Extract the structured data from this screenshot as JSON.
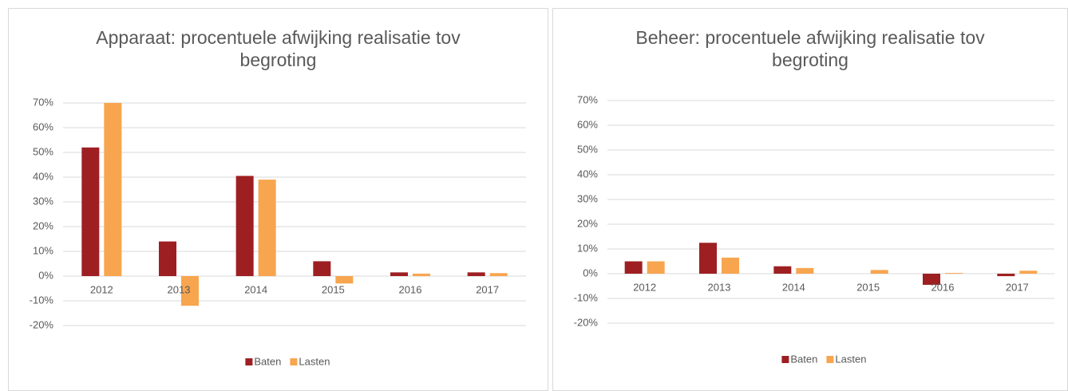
{
  "chart_data": [
    {
      "type": "bar",
      "title": "Apparaat: procentuele afwijking realisatie tov begroting",
      "categories": [
        "2012",
        "2013",
        "2014",
        "2015",
        "2016",
        "2017"
      ],
      "series": [
        {
          "name": "Baten",
          "color": "#9e1f22",
          "values": [
            52,
            14,
            40.5,
            6,
            1.5,
            1.5
          ]
        },
        {
          "name": "Lasten",
          "color": "#f8a54f",
          "values": [
            70,
            -12,
            39,
            -3,
            1,
            1.2
          ]
        }
      ],
      "ylim": [
        -20,
        70
      ],
      "yticks": [
        {
          "value": -20,
          "label": "-20%"
        },
        {
          "value": -10,
          "label": "-10%"
        },
        {
          "value": 0,
          "label": "0%"
        },
        {
          "value": 10,
          "label": "10%"
        },
        {
          "value": 20,
          "label": "20%"
        },
        {
          "value": 30,
          "label": "30%"
        },
        {
          "value": 40,
          "label": "40%"
        },
        {
          "value": 50,
          "label": "50%"
        },
        {
          "value": 60,
          "label": "60%"
        },
        {
          "value": 70,
          "label": "70%"
        }
      ],
      "grid": true,
      "legend": "bottom"
    },
    {
      "type": "bar",
      "title": "Beheer: procentuele afwijking realisatie tov begroting",
      "categories": [
        "2012",
        "2013",
        "2014",
        "2015",
        "2016",
        "2017"
      ],
      "series": [
        {
          "name": "Baten",
          "color": "#9e1f22",
          "values": [
            5,
            12.5,
            3,
            0,
            -4.5,
            -1
          ]
        },
        {
          "name": "Lasten",
          "color": "#f8a54f",
          "values": [
            5,
            6.5,
            2.3,
            1.5,
            0.3,
            1.2
          ]
        }
      ],
      "ylim": [
        -20,
        70
      ],
      "yticks": [
        {
          "value": -20,
          "label": "-20%"
        },
        {
          "value": -10,
          "label": "-10%"
        },
        {
          "value": 0,
          "label": "0%"
        },
        {
          "value": 10,
          "label": "10%"
        },
        {
          "value": 20,
          "label": "20%"
        },
        {
          "value": 30,
          "label": "30%"
        },
        {
          "value": 40,
          "label": "40%"
        },
        {
          "value": 50,
          "label": "50%"
        },
        {
          "value": 60,
          "label": "60%"
        },
        {
          "value": 70,
          "label": "70%"
        }
      ],
      "grid": true,
      "legend": "bottom"
    }
  ]
}
